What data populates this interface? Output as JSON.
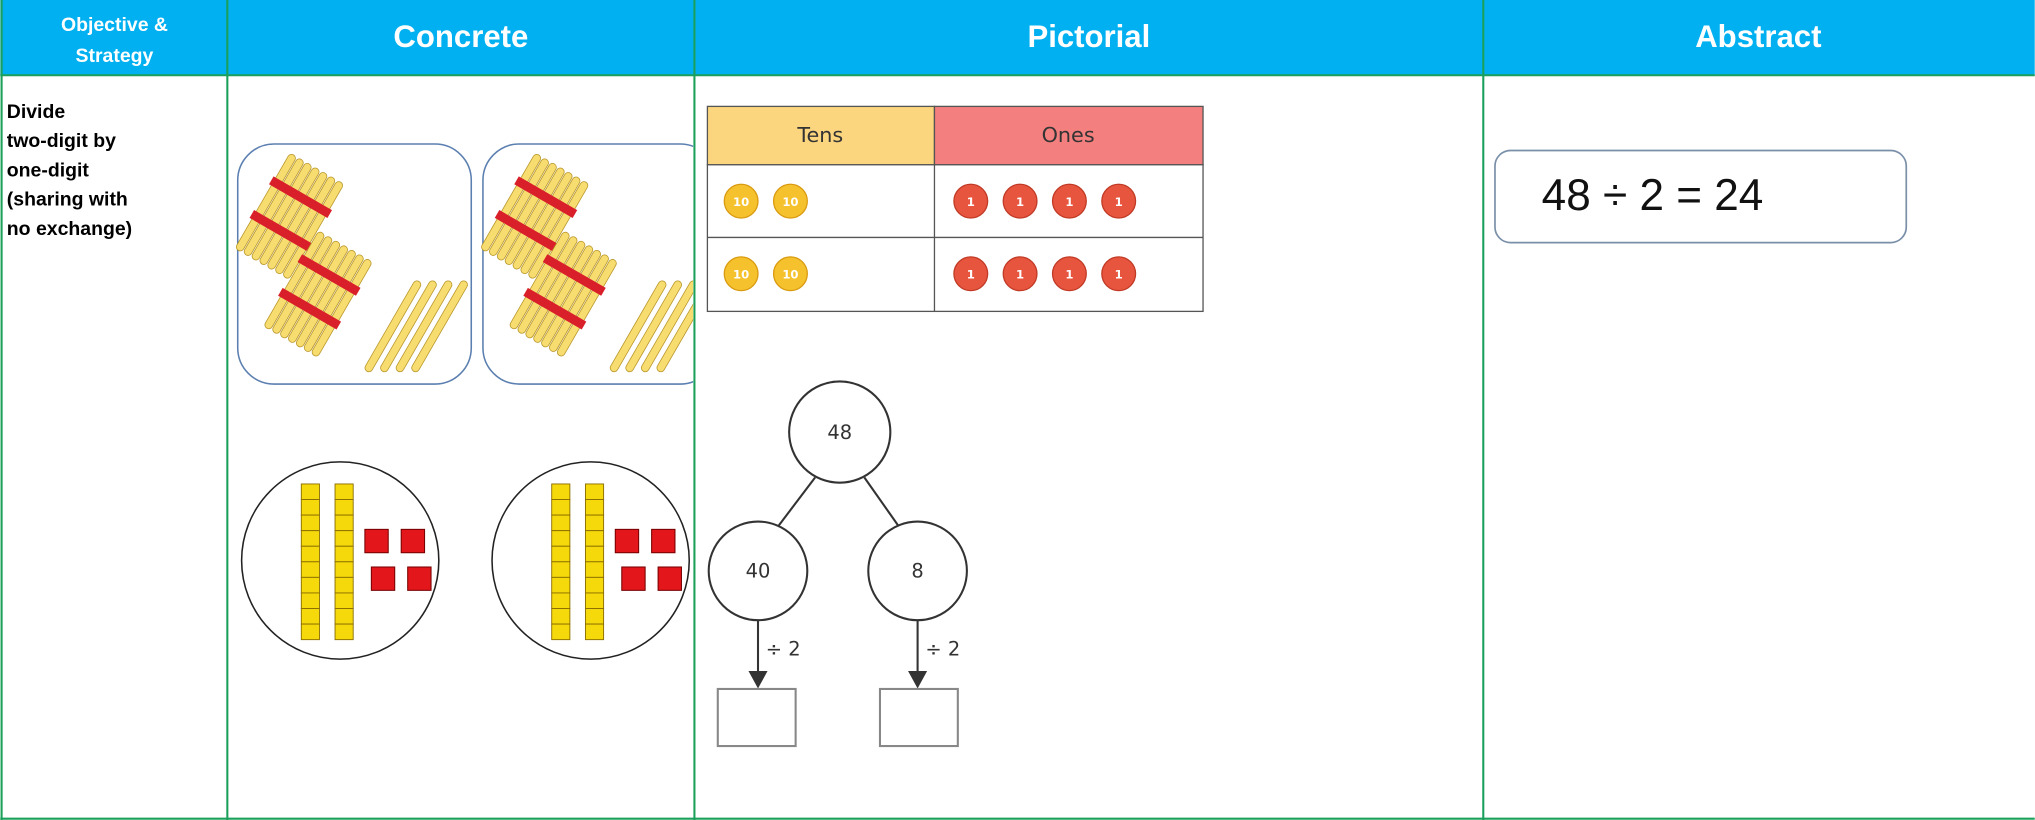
{
  "header": {
    "objective": [
      "Objective &",
      "Strategy"
    ],
    "concrete": "Concrete",
    "pictorial": "Pictorial",
    "abstract": "Abstract"
  },
  "row": {
    "objective": [
      "Divide",
      "two-digit by",
      "one-digit",
      "(sharing with",
      "no exchange)"
    ],
    "pictorial": {
      "place_value_table": {
        "headers": [
          "Tens",
          "Ones"
        ],
        "rows": [
          {
            "tens": [
              "10",
              "10"
            ],
            "ones": [
              "1",
              "1",
              "1",
              "1"
            ]
          },
          {
            "tens": [
              "10",
              "10"
            ],
            "ones": [
              "1",
              "1",
              "1",
              "1"
            ]
          }
        ]
      },
      "part_whole": {
        "whole": "48",
        "parts": [
          "40",
          "8"
        ],
        "operations": [
          "÷ 2",
          "÷ 2"
        ]
      }
    },
    "abstract": "48 ÷ 2 = 24"
  }
}
